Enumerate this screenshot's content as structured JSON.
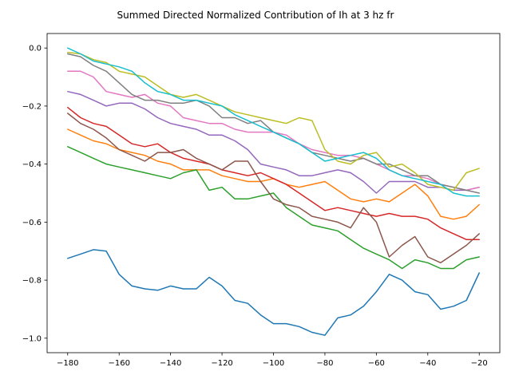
{
  "chart_data": {
    "type": "line",
    "title": "Summed Directed Normalized Contribution of Ih at 3 hz fr",
    "xlabel": "",
    "ylabel": "",
    "xlim": [
      -188,
      -12
    ],
    "ylim": [
      -1.05,
      0.05
    ],
    "xticks": [
      -180,
      -160,
      -140,
      -120,
      -100,
      -80,
      -60,
      -40,
      -20
    ],
    "yticks": [
      0.0,
      -0.2,
      -0.4,
      -0.6,
      -0.8,
      -1.0
    ],
    "xtick_labels": [
      "−180",
      "−160",
      "−140",
      "−120",
      "−100",
      "−80",
      "−60",
      "−40",
      "−20"
    ],
    "ytick_labels": [
      "0.0",
      "−0.2",
      "−0.4",
      "−0.6",
      "−0.8",
      "−1.0"
    ],
    "grid": false,
    "legend": "none",
    "x": [
      -180,
      -175,
      -170,
      -165,
      -160,
      -155,
      -150,
      -145,
      -140,
      -135,
      -130,
      -125,
      -120,
      -115,
      -110,
      -105,
      -100,
      -95,
      -90,
      -85,
      -80,
      -75,
      -70,
      -65,
      -60,
      -55,
      -50,
      -45,
      -40,
      -35,
      -30,
      -25,
      -20
    ],
    "series": [
      {
        "color": "#1f77b4",
        "values": [
          -0.725,
          -0.71,
          -0.695,
          -0.7,
          -0.78,
          -0.82,
          -0.83,
          -0.835,
          -0.82,
          -0.83,
          -0.83,
          -0.79,
          -0.82,
          -0.87,
          -0.88,
          -0.92,
          -0.95,
          -0.95,
          -0.96,
          -0.98,
          -0.99,
          -0.93,
          -0.92,
          -0.89,
          -0.84,
          -0.78,
          -0.8,
          -0.84,
          -0.85,
          -0.9,
          -0.89,
          -0.87,
          -0.775
        ]
      },
      {
        "color": "#ff7f0e",
        "values": [
          -0.28,
          -0.3,
          -0.32,
          -0.33,
          -0.35,
          -0.36,
          -0.37,
          -0.39,
          -0.4,
          -0.42,
          -0.42,
          -0.42,
          -0.44,
          -0.45,
          -0.46,
          -0.46,
          -0.45,
          -0.47,
          -0.48,
          -0.47,
          -0.46,
          -0.49,
          -0.52,
          -0.53,
          -0.52,
          -0.53,
          -0.5,
          -0.47,
          -0.51,
          -0.58,
          -0.59,
          -0.58,
          -0.54
        ]
      },
      {
        "color": "#2ca02c",
        "values": [
          -0.34,
          -0.36,
          -0.38,
          -0.4,
          -0.41,
          -0.42,
          -0.43,
          -0.44,
          -0.45,
          -0.43,
          -0.42,
          -0.49,
          -0.48,
          -0.52,
          -0.52,
          -0.51,
          -0.5,
          -0.55,
          -0.58,
          -0.61,
          -0.62,
          -0.63,
          -0.66,
          -0.69,
          -0.71,
          -0.73,
          -0.76,
          -0.73,
          -0.74,
          -0.76,
          -0.76,
          -0.73,
          -0.72
        ]
      },
      {
        "color": "#d62728",
        "values": [
          -0.205,
          -0.24,
          -0.26,
          -0.27,
          -0.3,
          -0.33,
          -0.34,
          -0.33,
          -0.36,
          -0.38,
          -0.39,
          -0.4,
          -0.42,
          -0.43,
          -0.44,
          -0.43,
          -0.45,
          -0.47,
          -0.5,
          -0.53,
          -0.56,
          -0.55,
          -0.56,
          -0.57,
          -0.58,
          -0.57,
          -0.58,
          -0.58,
          -0.59,
          -0.62,
          -0.64,
          -0.66,
          -0.66
        ]
      },
      {
        "color": "#9467bd",
        "values": [
          -0.15,
          -0.16,
          -0.18,
          -0.2,
          -0.19,
          -0.19,
          -0.21,
          -0.24,
          -0.26,
          -0.27,
          -0.28,
          -0.3,
          -0.3,
          -0.32,
          -0.35,
          -0.4,
          -0.41,
          -0.42,
          -0.44,
          -0.44,
          -0.43,
          -0.42,
          -0.43,
          -0.46,
          -0.5,
          -0.46,
          -0.46,
          -0.46,
          -0.48,
          -0.48,
          -0.49,
          -0.49,
          -0.48
        ]
      },
      {
        "color": "#8c564b",
        "values": [
          -0.225,
          -0.26,
          -0.28,
          -0.31,
          -0.35,
          -0.37,
          -0.39,
          -0.36,
          -0.36,
          -0.35,
          -0.38,
          -0.4,
          -0.42,
          -0.39,
          -0.39,
          -0.46,
          -0.52,
          -0.54,
          -0.55,
          -0.58,
          -0.59,
          -0.6,
          -0.62,
          -0.55,
          -0.6,
          -0.72,
          -0.68,
          -0.65,
          -0.72,
          -0.74,
          -0.71,
          -0.68,
          -0.64
        ]
      },
      {
        "color": "#e377c2",
        "values": [
          -0.08,
          -0.08,
          -0.1,
          -0.15,
          -0.16,
          -0.17,
          -0.16,
          -0.19,
          -0.2,
          -0.24,
          -0.25,
          -0.26,
          -0.26,
          -0.28,
          -0.29,
          -0.29,
          -0.29,
          -0.3,
          -0.33,
          -0.35,
          -0.36,
          -0.37,
          -0.37,
          -0.38,
          -0.4,
          -0.42,
          -0.44,
          -0.44,
          -0.45,
          -0.47,
          -0.48,
          -0.49,
          -0.48
        ]
      },
      {
        "color": "#7f7f7f",
        "values": [
          -0.02,
          -0.03,
          -0.06,
          -0.08,
          -0.12,
          -0.16,
          -0.18,
          -0.18,
          -0.19,
          -0.19,
          -0.18,
          -0.2,
          -0.24,
          -0.24,
          -0.26,
          -0.25,
          -0.29,
          -0.31,
          -0.33,
          -0.36,
          -0.37,
          -0.38,
          -0.39,
          -0.38,
          -0.4,
          -0.4,
          -0.42,
          -0.44,
          -0.44,
          -0.47,
          -0.48,
          -0.49,
          -0.5
        ]
      },
      {
        "color": "#bcbd22",
        "values": [
          -0.015,
          -0.02,
          -0.04,
          -0.05,
          -0.08,
          -0.09,
          -0.1,
          -0.13,
          -0.16,
          -0.17,
          -0.16,
          -0.18,
          -0.2,
          -0.22,
          -0.23,
          -0.24,
          -0.25,
          -0.26,
          -0.24,
          -0.25,
          -0.35,
          -0.39,
          -0.4,
          -0.37,
          -0.36,
          -0.41,
          -0.4,
          -0.43,
          -0.47,
          -0.48,
          -0.49,
          -0.43,
          -0.415
        ]
      },
      {
        "color": "#17becf",
        "values": [
          0.0,
          -0.02,
          -0.045,
          -0.055,
          -0.065,
          -0.08,
          -0.12,
          -0.15,
          -0.16,
          -0.18,
          -0.18,
          -0.19,
          -0.2,
          -0.23,
          -0.25,
          -0.27,
          -0.29,
          -0.31,
          -0.33,
          -0.36,
          -0.39,
          -0.38,
          -0.37,
          -0.36,
          -0.38,
          -0.42,
          -0.44,
          -0.45,
          -0.46,
          -0.47,
          -0.5,
          -0.51,
          -0.51
        ]
      }
    ]
  }
}
